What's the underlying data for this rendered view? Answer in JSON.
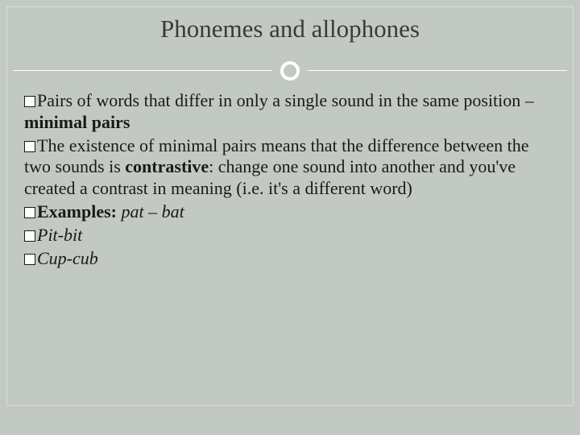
{
  "slide": {
    "title": "Phonemes and allophones",
    "background_color": "#c2c9c3",
    "divider_color": "#ffffff",
    "text_color": "#1a1a1a",
    "title_color": "#3a3a3a",
    "title_fontsize": 31,
    "body_fontsize": 22,
    "bullets": [
      {
        "runs": [
          {
            "t": "Pairs of words that differ in only a single sound in the same position – "
          },
          {
            "t": "minimal pairs",
            "bold": true
          }
        ]
      },
      {
        "runs": [
          {
            "t": "The existence of minimal pairs means that the difference between the two sounds is "
          },
          {
            "t": "contrastive",
            "bold": true
          },
          {
            "t": ": change one sound into another and you've created a contrast in meaning (i.e. it's a different word)"
          }
        ]
      },
      {
        "runs": [
          {
            "t": "Examples: ",
            "bold": true
          },
          {
            "t": "pat – bat",
            "italic": true
          }
        ]
      },
      {
        "runs": [
          {
            "t": "Pit-bit",
            "italic": true
          }
        ]
      },
      {
        "runs": [
          {
            "t": "Cup-cub",
            "italic": true
          }
        ]
      }
    ]
  }
}
